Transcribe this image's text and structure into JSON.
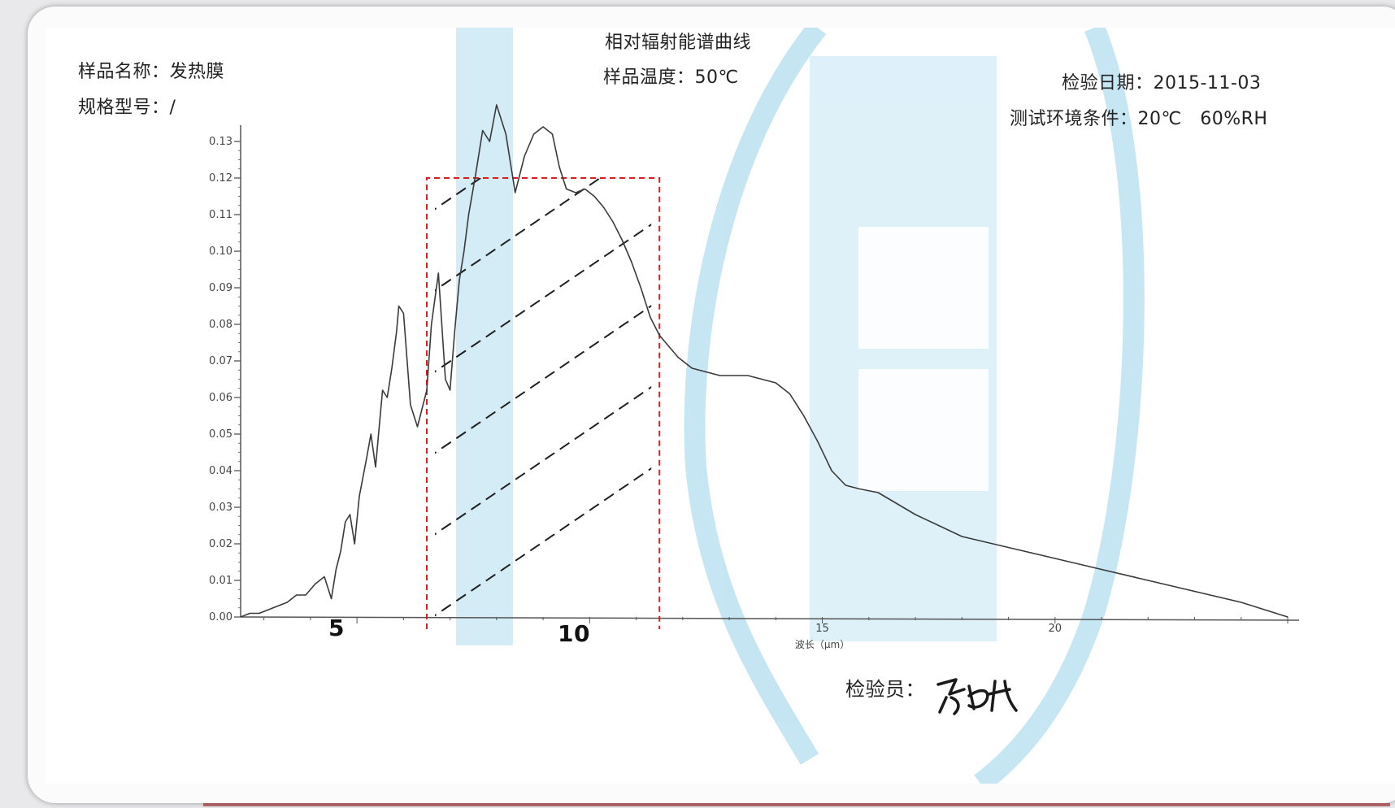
{
  "report": {
    "chart_title": "相对辐射能谱曲线",
    "sample_name": "样品名称：发热膜",
    "spec_model": "规格型号：/",
    "sample_temp": "样品温度：50℃",
    "test_date": "检验日期：2015-11-03",
    "environment": "测试环境条件：20℃　60%RH",
    "inspector": "检验员：",
    "signature": "吴妲",
    "x_annotation_left": "5",
    "x_annotation_right": "10"
  },
  "colors": {
    "curve": "#3a3a3a",
    "axis": "#555555",
    "highlight_box": "#d42020",
    "hatch": "#1f1f1f",
    "watermark": "#bfe3f1"
  },
  "chart_data": {
    "type": "line",
    "title": "相对辐射能谱曲线",
    "xlabel": "波长（μm）",
    "ylabel": "",
    "xlim": [
      2.5,
      25
    ],
    "ylim": [
      0,
      0.13
    ],
    "x_ticks": [
      15,
      20
    ],
    "y_ticks": [
      "0.00",
      "0.01",
      "0.02",
      "0.03",
      "0.04",
      "0.05",
      "0.06",
      "0.07",
      "0.08",
      "0.09",
      "0.10",
      "0.11",
      "0.12",
      "0.13"
    ],
    "grid": false,
    "highlight_band": {
      "x": [
        6.5,
        11.5
      ],
      "y_top": 0.12,
      "style": "red dashed rectangle with diagonal hatching"
    },
    "series": [
      {
        "x": [
          2.5,
          2.7,
          2.9,
          3.1,
          3.3,
          3.5,
          3.7,
          3.9,
          4.1,
          4.3,
          4.45,
          4.55,
          4.65,
          4.75,
          4.85,
          4.95,
          5.05,
          5.2,
          5.3,
          5.4,
          5.5,
          5.55,
          5.65,
          5.75,
          5.85,
          5.9,
          6.0,
          6.15,
          6.3,
          6.5,
          6.6,
          6.75,
          6.9,
          7.0,
          7.1,
          7.2,
          7.3,
          7.4,
          7.55,
          7.7,
          7.85,
          8.0,
          8.2,
          8.4,
          8.6,
          8.8,
          9.0,
          9.2,
          9.35,
          9.5,
          9.7,
          9.9,
          10.1,
          10.3,
          10.5,
          10.7,
          10.9,
          11.1,
          11.3,
          11.5,
          11.7,
          11.9,
          12.2,
          12.5,
          12.8,
          13.1,
          13.4,
          13.7,
          14.0,
          14.3,
          14.6,
          14.9,
          15.2,
          15.5,
          15.8,
          16.2,
          16.6,
          17.0,
          17.5,
          18.0,
          19.0,
          20.0,
          21.0,
          22.0,
          23.0,
          24.0,
          25.0
        ],
        "y": [
          0.0,
          0.001,
          0.001,
          0.002,
          0.003,
          0.004,
          0.006,
          0.006,
          0.009,
          0.011,
          0.005,
          0.013,
          0.018,
          0.026,
          0.028,
          0.02,
          0.033,
          0.043,
          0.05,
          0.041,
          0.055,
          0.062,
          0.06,
          0.068,
          0.078,
          0.085,
          0.083,
          0.058,
          0.052,
          0.062,
          0.08,
          0.094,
          0.065,
          0.062,
          0.078,
          0.092,
          0.1,
          0.11,
          0.121,
          0.133,
          0.13,
          0.14,
          0.132,
          0.116,
          0.126,
          0.132,
          0.134,
          0.132,
          0.123,
          0.117,
          0.116,
          0.117,
          0.115,
          0.112,
          0.108,
          0.103,
          0.097,
          0.09,
          0.082,
          0.077,
          0.074,
          0.071,
          0.068,
          0.067,
          0.066,
          0.066,
          0.066,
          0.065,
          0.064,
          0.061,
          0.055,
          0.048,
          0.04,
          0.036,
          0.035,
          0.034,
          0.031,
          0.028,
          0.025,
          0.022,
          0.019,
          0.016,
          0.013,
          0.01,
          0.007,
          0.004,
          0.0
        ]
      }
    ]
  }
}
